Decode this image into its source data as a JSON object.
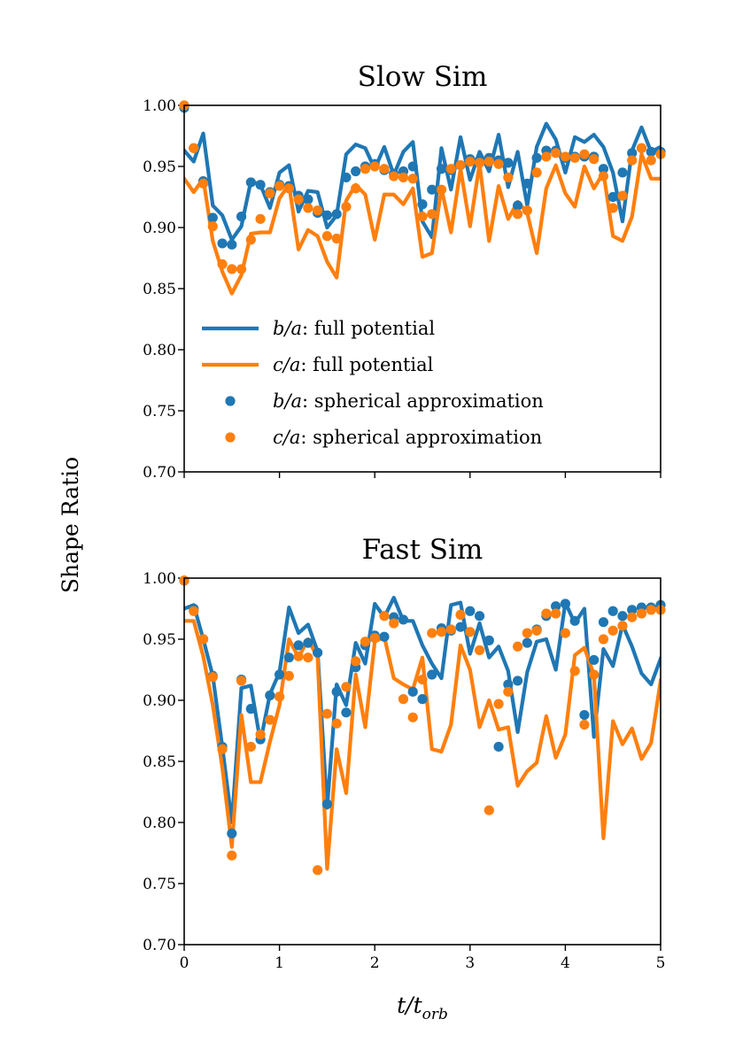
{
  "figure": {
    "ylabel": "Shape Ratio",
    "xlabel_main": "t/t",
    "xlabel_sub": "orb"
  },
  "colors": {
    "blue": "#1f77b4",
    "orange": "#ff7f0e"
  },
  "legend": {
    "items": [
      {
        "kind": "line",
        "color": "blue",
        "label_sym": "b/a",
        "label_rest": ": full potential"
      },
      {
        "kind": "line",
        "color": "orange",
        "label_sym": "c/a",
        "label_rest": ": full potential"
      },
      {
        "kind": "dot",
        "color": "blue",
        "label_sym": "b/a",
        "label_rest": ": spherical approximation"
      },
      {
        "kind": "dot",
        "color": "orange",
        "label_sym": "c/a",
        "label_rest": ": spherical approximation"
      }
    ]
  },
  "chart_data": [
    {
      "type": "line",
      "title": "Slow Sim",
      "xlabel": "t/t_orb",
      "ylabel": "Shape Ratio",
      "xlim": [
        0,
        5
      ],
      "ylim": [
        0.7,
        1.0
      ],
      "xticks": [
        0,
        1,
        2,
        3,
        4,
        5
      ],
      "yticks": [
        "0.70",
        "0.75",
        "0.80",
        "0.85",
        "0.90",
        "0.95",
        "1.00"
      ],
      "show_xtick_labels": false,
      "legend_position": "lower-left",
      "x": [
        0,
        0.1,
        0.2,
        0.3,
        0.4,
        0.5,
        0.6,
        0.7,
        0.8,
        0.9,
        1.0,
        1.1,
        1.2,
        1.3,
        1.4,
        1.5,
        1.6,
        1.7,
        1.8,
        1.9,
        2.0,
        2.1,
        2.2,
        2.3,
        2.4,
        2.5,
        2.6,
        2.7,
        2.8,
        2.9,
        3.0,
        3.1,
        3.2,
        3.3,
        3.4,
        3.5,
        3.6,
        3.7,
        3.8,
        3.9,
        4.0,
        4.1,
        4.2,
        4.3,
        4.4,
        4.5,
        4.6,
        4.7,
        4.8,
        4.9,
        5.0
      ],
      "series": [
        {
          "name": "b/a: full potential",
          "kind": "line",
          "color": "blue",
          "values": [
            0.963,
            0.954,
            0.977,
            0.918,
            0.91,
            0.89,
            0.901,
            0.938,
            0.935,
            0.916,
            0.945,
            0.951,
            0.913,
            0.93,
            0.929,
            0.9,
            0.91,
            0.96,
            0.968,
            0.965,
            0.948,
            0.966,
            0.943,
            0.962,
            0.97,
            0.905,
            0.892,
            0.965,
            0.931,
            0.974,
            0.939,
            0.962,
            0.946,
            0.976,
            0.933,
            0.962,
            0.918,
            0.966,
            0.985,
            0.972,
            0.945,
            0.974,
            0.97,
            0.976,
            0.966,
            0.945,
            0.905,
            0.963,
            0.982,
            0.962,
            0.966
          ]
        },
        {
          "name": "c/a: full potential",
          "kind": "line",
          "color": "orange",
          "values": [
            0.94,
            0.929,
            0.94,
            0.889,
            0.864,
            0.846,
            0.861,
            0.895,
            0.896,
            0.896,
            0.924,
            0.935,
            0.882,
            0.898,
            0.893,
            0.872,
            0.859,
            0.922,
            0.935,
            0.927,
            0.89,
            0.927,
            0.927,
            0.919,
            0.932,
            0.876,
            0.879,
            0.932,
            0.896,
            0.948,
            0.901,
            0.952,
            0.889,
            0.934,
            0.907,
            0.921,
            0.912,
            0.879,
            0.932,
            0.951,
            0.928,
            0.917,
            0.95,
            0.932,
            0.945,
            0.893,
            0.889,
            0.909,
            0.96,
            0.94,
            0.94
          ]
        },
        {
          "name": "b/a: spherical approximation",
          "kind": "scatter",
          "color": "blue",
          "values": [
            0.998,
            0.965,
            0.938,
            0.908,
            0.887,
            0.886,
            0.909,
            0.937,
            0.935,
            0.929,
            0.935,
            0.934,
            0.926,
            0.923,
            0.912,
            0.91,
            0.911,
            0.941,
            0.946,
            0.95,
            0.952,
            0.947,
            0.944,
            0.946,
            0.95,
            0.919,
            0.931,
            0.948,
            0.947,
            0.951,
            0.956,
            0.955,
            0.957,
            0.955,
            0.953,
            0.918,
            0.936,
            0.957,
            0.963,
            0.963,
            0.957,
            0.958,
            0.958,
            0.958,
            0.948,
            0.925,
            0.945,
            0.961,
            0.965,
            0.962,
            0.962
          ]
        },
        {
          "name": "c/a: spherical approximation",
          "kind": "scatter",
          "color": "orange",
          "values": [
            1.0,
            0.965,
            0.936,
            0.901,
            0.87,
            0.866,
            0.866,
            0.89,
            0.907,
            0.928,
            0.934,
            0.932,
            0.923,
            0.916,
            0.914,
            0.893,
            0.891,
            0.917,
            0.932,
            0.948,
            0.95,
            0.948,
            0.942,
            0.941,
            0.94,
            0.909,
            0.911,
            0.931,
            0.948,
            0.951,
            0.954,
            0.953,
            0.954,
            0.952,
            0.941,
            0.911,
            0.914,
            0.945,
            0.958,
            0.961,
            0.958,
            0.957,
            0.96,
            0.956,
            0.942,
            0.916,
            0.926,
            0.955,
            0.965,
            0.955,
            0.96
          ]
        }
      ]
    },
    {
      "type": "line",
      "title": "Fast Sim",
      "xlabel": "t/t_orb",
      "ylabel": "Shape Ratio",
      "xlim": [
        0,
        5
      ],
      "ylim": [
        0.7,
        1.0
      ],
      "xticks": [
        0,
        1,
        2,
        3,
        4,
        5
      ],
      "yticks": [
        "0.70",
        "0.75",
        "0.80",
        "0.85",
        "0.90",
        "0.95",
        "1.00"
      ],
      "show_xtick_labels": true,
      "x": [
        0,
        0.1,
        0.2,
        0.3,
        0.4,
        0.5,
        0.6,
        0.7,
        0.8,
        0.9,
        1.0,
        1.1,
        1.2,
        1.3,
        1.4,
        1.5,
        1.6,
        1.7,
        1.8,
        1.9,
        2.0,
        2.1,
        2.2,
        2.3,
        2.4,
        2.5,
        2.6,
        2.7,
        2.8,
        2.9,
        3.0,
        3.1,
        3.2,
        3.3,
        3.4,
        3.5,
        3.6,
        3.7,
        3.8,
        3.9,
        4.0,
        4.1,
        4.2,
        4.3,
        4.4,
        4.5,
        4.6,
        4.7,
        4.8,
        4.9,
        5.0
      ],
      "series": [
        {
          "name": "b/a: full potential",
          "kind": "line",
          "color": "blue",
          "values": [
            0.975,
            0.978,
            0.95,
            0.92,
            0.862,
            0.8,
            0.91,
            0.912,
            0.866,
            0.905,
            0.923,
            0.976,
            0.955,
            0.962,
            0.94,
            0.812,
            0.913,
            0.896,
            0.947,
            0.93,
            0.979,
            0.968,
            0.984,
            0.965,
            0.965,
            0.945,
            0.93,
            0.918,
            0.978,
            0.98,
            0.938,
            0.963,
            0.935,
            0.944,
            0.924,
            0.874,
            0.923,
            0.948,
            0.95,
            0.925,
            0.98,
            0.963,
            0.975,
            0.87,
            0.942,
            0.928,
            0.962,
            0.944,
            0.922,
            0.913,
            0.934
          ]
        },
        {
          "name": "c/a: full potential",
          "kind": "line",
          "color": "orange",
          "values": [
            0.965,
            0.965,
            0.936,
            0.896,
            0.845,
            0.78,
            0.888,
            0.833,
            0.833,
            0.866,
            0.896,
            0.95,
            0.935,
            0.95,
            0.935,
            0.762,
            0.86,
            0.824,
            0.921,
            0.878,
            0.948,
            0.952,
            0.918,
            0.913,
            0.909,
            0.935,
            0.86,
            0.858,
            0.88,
            0.945,
            0.925,
            0.878,
            0.9,
            0.876,
            0.878,
            0.83,
            0.842,
            0.849,
            0.887,
            0.853,
            0.872,
            0.937,
            0.943,
            0.921,
            0.787,
            0.883,
            0.864,
            0.877,
            0.852,
            0.865,
            0.916
          ]
        },
        {
          "name": "b/a: spherical approximation",
          "kind": "scatter",
          "color": "blue",
          "values": [
            0.998,
            0.975,
            0.95,
            0.92,
            0.862,
            0.791,
            0.917,
            0.893,
            0.868,
            0.904,
            0.921,
            0.935,
            0.945,
            0.947,
            0.939,
            0.815,
            0.907,
            0.89,
            0.927,
            0.945,
            0.953,
            0.952,
            0.968,
            0.966,
            0.907,
            0.901,
            0.921,
            0.959,
            0.957,
            0.96,
            0.973,
            0.969,
            0.949,
            0.862,
            0.913,
            0.916,
            0.947,
            0.958,
            0.969,
            0.977,
            0.979,
            0.965,
            0.888,
            0.933,
            0.964,
            0.973,
            0.969,
            0.974,
            0.976,
            0.976,
            0.978
          ]
        },
        {
          "name": "c/a: spherical approximation",
          "kind": "scatter",
          "color": "orange",
          "values": [
            0.998,
            0.973,
            0.95,
            0.919,
            0.86,
            0.773,
            0.916,
            0.862,
            0.872,
            0.884,
            0.903,
            0.92,
            0.936,
            0.935,
            0.761,
            0.889,
            0.881,
            0.911,
            0.932,
            0.948,
            0.951,
            0.969,
            0.963,
            0.901,
            0.886,
            0.917,
            0.955,
            0.956,
            0.958,
            0.97,
            0.956,
            0.941,
            0.81,
            0.897,
            0.907,
            0.944,
            0.955,
            0.957,
            0.971,
            0.971,
            0.955,
            0.924,
            0.88,
            0.921,
            0.95,
            0.957,
            0.961,
            0.968,
            0.971,
            0.974,
            0.974
          ]
        }
      ]
    }
  ]
}
